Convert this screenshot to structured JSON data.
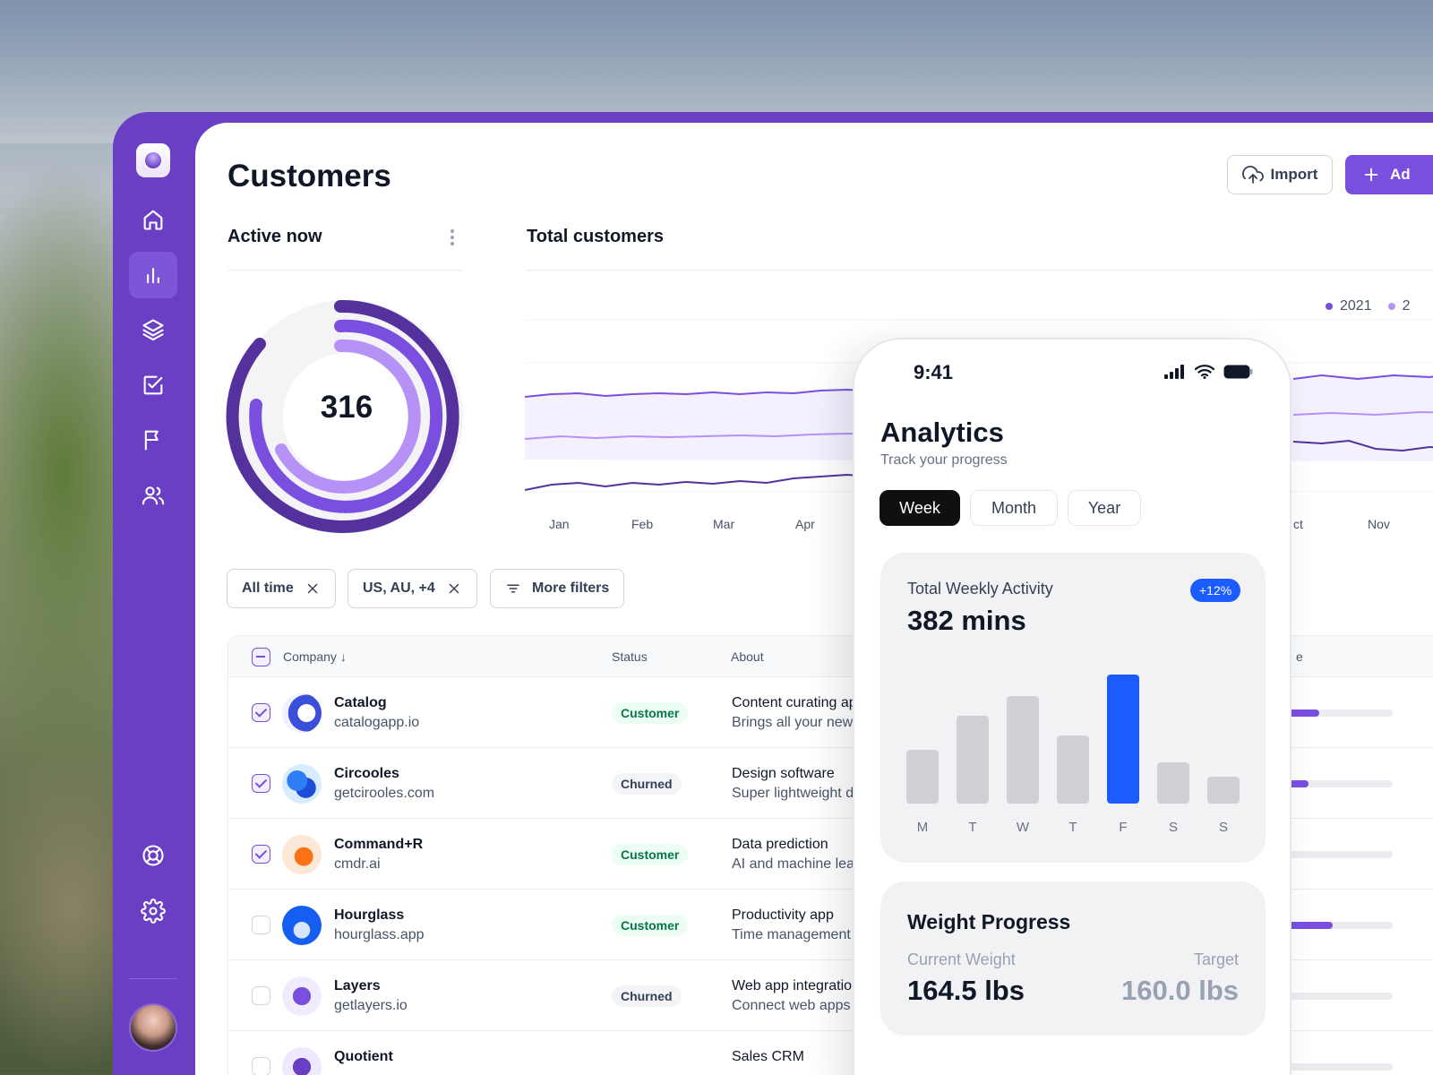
{
  "page": {
    "title": "Customers"
  },
  "header": {
    "import_label": "Import",
    "add_label": "Ad"
  },
  "sidebar": {
    "items": [
      {
        "name": "home-icon",
        "active": false
      },
      {
        "name": "bar-chart-icon",
        "active": true
      },
      {
        "name": "layers-icon",
        "active": false
      },
      {
        "name": "check-square-icon",
        "active": false
      },
      {
        "name": "flag-icon",
        "active": false
      },
      {
        "name": "users-icon",
        "active": false
      }
    ],
    "bottom": [
      "life-buoy-icon",
      "gear-icon"
    ]
  },
  "active_now": {
    "title": "Active now",
    "value": "316"
  },
  "total_customers": {
    "title": "Total customers",
    "legend": [
      "2021",
      "2"
    ],
    "months": [
      "Jan",
      "Feb",
      "Mar",
      "Apr",
      "ct",
      "Nov"
    ]
  },
  "filters": {
    "all_time": "All time",
    "regions": "US, AU, +4",
    "more": "More filters"
  },
  "table": {
    "headers": {
      "company": "Company",
      "status": "Status",
      "about": "About",
      "extra": "e"
    },
    "rows": [
      {
        "checked": true,
        "name": "Catalog",
        "domain": "catalogapp.io",
        "status": "Customer",
        "about_title": "Content curating ap",
        "about_desc": "Brings all your news",
        "progress": 0.45
      },
      {
        "checked": true,
        "name": "Circooles",
        "domain": "getcirooles.com",
        "status": "Churned",
        "about_title": "Design software",
        "about_desc": "Super lightweight d",
        "progress": 0.37
      },
      {
        "checked": true,
        "name": "Command+R",
        "domain": "cmdr.ai",
        "status": "Customer",
        "about_title": "Data prediction",
        "about_desc": "AI and machine lear",
        "progress": 0.0
      },
      {
        "checked": false,
        "name": "Hourglass",
        "domain": "hourglass.app",
        "status": "Customer",
        "about_title": "Productivity app",
        "about_desc": "Time management",
        "progress": 0.55
      },
      {
        "checked": false,
        "name": "Layers",
        "domain": "getlayers.io",
        "status": "Churned",
        "about_title": "Web app integration",
        "about_desc": "Connect web apps",
        "progress": 0.0
      },
      {
        "checked": false,
        "name": "Quotient",
        "domain": "",
        "status": "",
        "about_title": "Sales CRM",
        "about_desc": "",
        "progress": 0.0
      }
    ]
  },
  "phone": {
    "time": "9:41",
    "title": "Analytics",
    "subtitle": "Track your progress",
    "tabs": [
      "Week",
      "Month",
      "Year"
    ],
    "active_tab": "Week",
    "weekly": {
      "label": "Total Weekly Activity",
      "badge": "+12%",
      "value": "382 mins",
      "days": [
        "M",
        "T",
        "W",
        "T",
        "F",
        "S",
        "S"
      ],
      "highlight_index": 4
    },
    "weight": {
      "title": "Weight Progress",
      "current_label": "Current Weight",
      "target_label": "Target",
      "current": "164.5 lbs",
      "target": "160.0 lbs"
    }
  },
  "colors": {
    "brand": "#6a3fc4",
    "accent": "#7a4fe0",
    "highlight_bar": "#1b5cff"
  }
}
